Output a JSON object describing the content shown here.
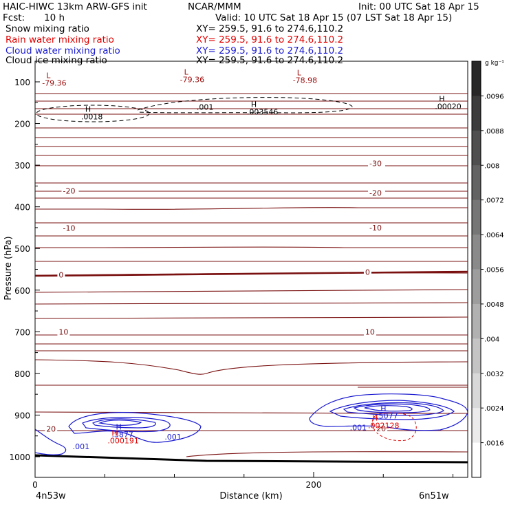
{
  "header": {
    "title_left": "HAIC-HIWC 13km ARW-GFS init",
    "org": "NCAR/MMM",
    "init": "Init: 00 UTC Sat 18 Apr 15",
    "fcst_label": "Fcst:",
    "fcst_value": "10 h",
    "valid": "Valid: 10 UTC Sat 18 Apr 15 (07 LST Sat 18 Apr 15)"
  },
  "fields": [
    {
      "name": "Snow mixing ratio",
      "xy": "XY= 259.5, 91.6 to 274.6,110.2",
      "color": "#000000"
    },
    {
      "name": "Rain water mixing ratio",
      "xy": "XY= 259.5, 91.6 to 274.6,110.2",
      "color": "#e00000"
    },
    {
      "name": "Cloud water mixing ratio",
      "xy": "XY= 259.5, 91.6 to 274.6,110.2",
      "color": "#1a1ad0"
    },
    {
      "name": "Cloud ice mixing ratio",
      "xy": "XY= 259.5, 91.6 to 274.6,110.2",
      "color": "#000000"
    }
  ],
  "colors": {
    "temperature_contour": "#7a1010",
    "cloud_water": "#1a1ad0",
    "rain_water": "#e00000",
    "snow": "#000000"
  },
  "chart_data": {
    "type": "contour",
    "title": "HAIC-HIWC 13km ARW-GFS init",
    "xlabel": "Distance (km)",
    "ylabel": "Pressure (hPa)",
    "x_range": [
      0,
      310
    ],
    "y_range": [
      1050,
      60
    ],
    "y_scale": "linear-inverted",
    "y_ticks": [
      100,
      200,
      300,
      400,
      500,
      600,
      700,
      800,
      900,
      1000
    ],
    "x_ticks": [
      0,
      200
    ],
    "x_left_label": "4n53w",
    "x_right_label": "6n51w",
    "colorbar": {
      "unit": "g kg⁻¹",
      "ticks": [
        ".0096",
        ".0088",
        ".008",
        ".0072",
        ".0064",
        ".0056",
        ".0048",
        ".004",
        ".0032",
        ".0024",
        ".0016"
      ]
    },
    "temperature_labels": [
      {
        "text": "-30",
        "x": 240,
        "p": 296
      },
      {
        "text": "-20",
        "x": 20,
        "p": 362
      },
      {
        "text": "-20",
        "x": 240,
        "p": 367
      },
      {
        "text": "-10",
        "x": 20,
        "p": 451
      },
      {
        "text": "-10",
        "x": 240,
        "p": 450
      },
      {
        "text": "0",
        "x": 17,
        "p": 563
      },
      {
        "text": "0",
        "x": 237,
        "p": 557
      },
      {
        "text": "10",
        "x": 17,
        "p": 700
      },
      {
        "text": "10",
        "x": 237,
        "p": 700
      },
      {
        "text": "20",
        "x": 8,
        "p": 933
      },
      {
        "text": "20",
        "x": 245,
        "p": 932
      }
    ],
    "extrema": [
      {
        "type": "L",
        "value": "-79.36",
        "x": 8,
        "p": 91,
        "color": "rain"
      },
      {
        "type": "L",
        "value": "-79.36",
        "x": 107,
        "p": 83,
        "color": "rain"
      },
      {
        "type": "L",
        "value": "-78.98",
        "x": 188,
        "p": 84,
        "color": "rain"
      },
      {
        "type": "H",
        "value": ".0018",
        "x": 36,
        "p": 172,
        "color": "snow"
      },
      {
        "type": "H",
        "value": ".003546",
        "x": 155,
        "p": 160,
        "color": "snow"
      },
      {
        "type": "H",
        "value": ".00020",
        "x": 290,
        "p": 147,
        "color": "snow"
      },
      {
        "type": "H",
        "value": ".3877",
        "x": 58,
        "p": 935,
        "color": "cloud"
      },
      {
        "type": "H",
        "value": ".5077",
        "x": 248,
        "p": 890,
        "color": "cloud"
      },
      {
        "type": "H",
        "value": ".000191",
        "x": 55,
        "p": 950,
        "color": "rain"
      },
      {
        "type": "H",
        "value": ".002128",
        "x": 242,
        "p": 913,
        "color": "rain"
      }
    ],
    "cloud_water_labels": [
      {
        "text": ".001",
        "x": 27,
        "p": 975
      },
      {
        "text": ".001",
        "x": 93,
        "p": 952
      },
      {
        "text": ".001",
        "x": 226,
        "p": 930
      }
    ],
    "snow_labels": [
      {
        "text": ".001",
        "x": 116,
        "p": 160
      }
    ]
  }
}
